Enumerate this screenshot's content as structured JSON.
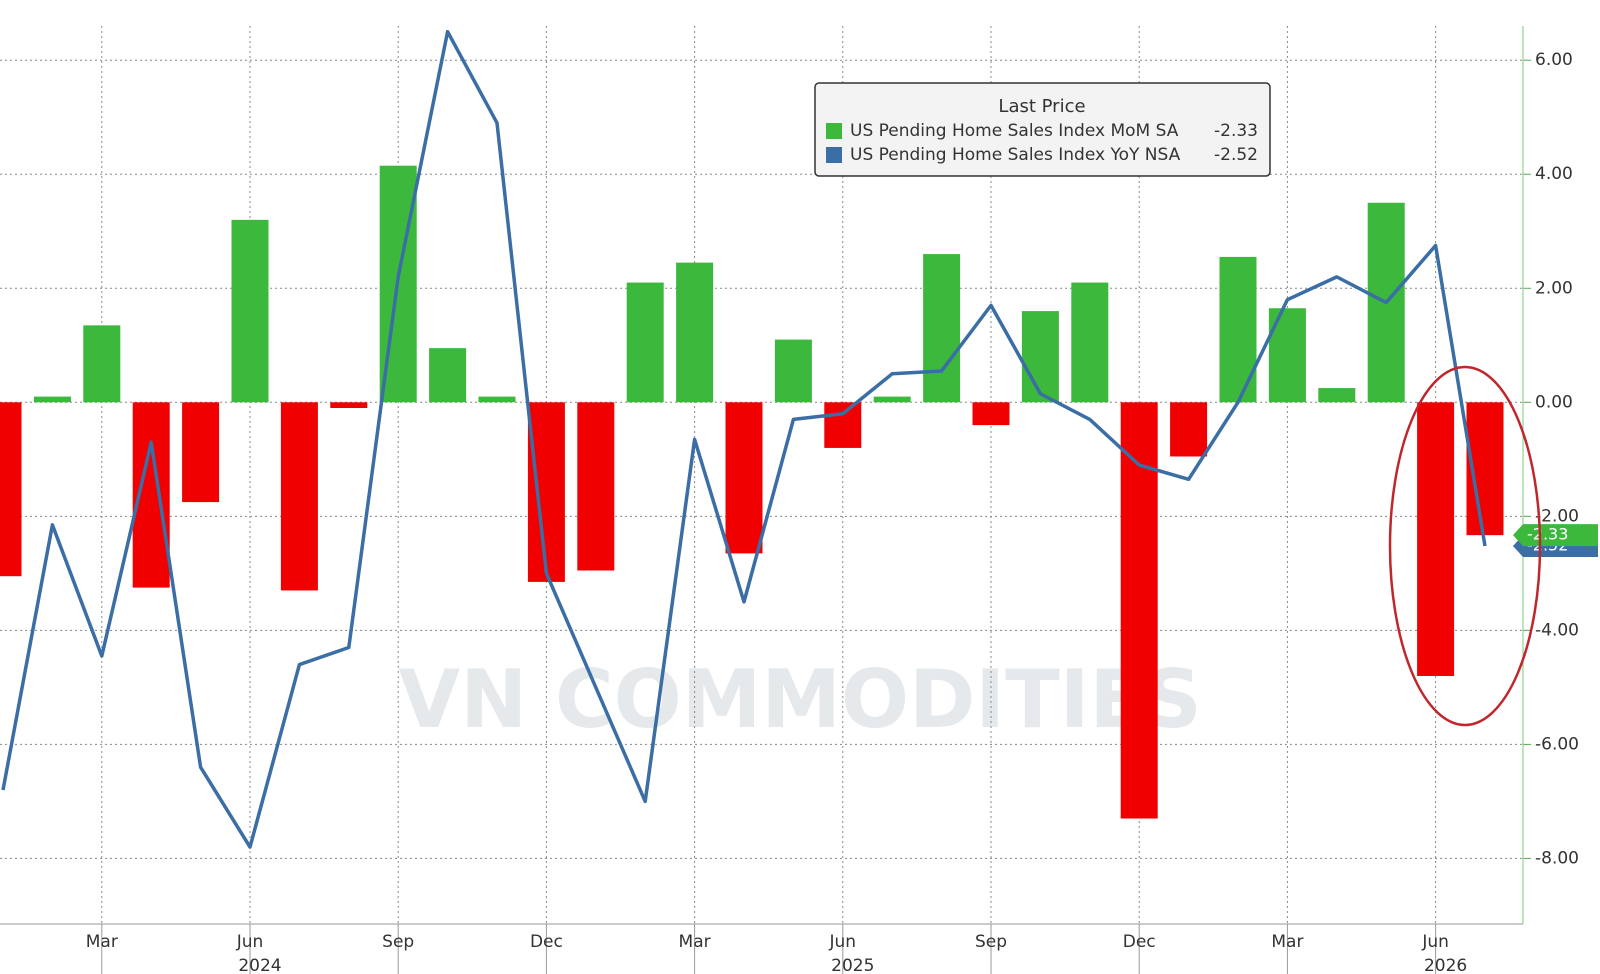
{
  "chart_data": {
    "type": "bar_line",
    "legend_title": "Last Price",
    "watermark": "VN COMMODITIES",
    "categories": [
      null,
      null,
      "Mar",
      null,
      null,
      "Jun",
      null,
      null,
      "Sep",
      null,
      null,
      "Dec",
      null,
      null,
      "Mar",
      null,
      null,
      "Jun",
      null,
      null,
      "Sep",
      null,
      null,
      "Dec",
      null,
      null,
      "Mar",
      null,
      null,
      "Jun",
      null
    ],
    "years": [
      "2024",
      "2025",
      "2026"
    ],
    "series": [
      {
        "name": "US Pending Home Sales Index MoM SA",
        "type": "bar",
        "color": "#3cb93c",
        "negative_color": "#f00000",
        "values": [
          -3.05,
          0.1,
          1.35,
          -3.25,
          -1.75,
          3.2,
          -3.3,
          -0.1,
          4.15,
          0.95,
          0.1,
          -3.15,
          -2.95,
          2.1,
          2.45,
          -2.65,
          1.1,
          -0.8,
          0.1,
          2.6,
          -0.4,
          1.6,
          2.1,
          -7.3,
          -0.95,
          2.55,
          1.65,
          0.25,
          3.5,
          -4.8,
          -2.33
        ]
      },
      {
        "name": "US Pending Home Sales Index YoY NSA",
        "type": "line",
        "color": "#3a6ea5",
        "values": [
          -6.8,
          -2.15,
          -4.45,
          -0.7,
          -6.4,
          -7.8,
          -4.6,
          -4.3,
          2.2,
          6.5,
          4.9,
          -3.0,
          -5.0,
          -7.0,
          -0.65,
          -3.5,
          -0.3,
          -0.2,
          0.5,
          0.55,
          1.7,
          0.15,
          -0.3,
          -1.1,
          -1.35,
          0.0,
          1.8,
          2.2,
          1.75,
          2.75,
          -2.52
        ]
      }
    ],
    "ylim": [
      -9.15,
      6.6
    ],
    "yticks": [
      {
        "value": 6,
        "label": "6.00"
      },
      {
        "value": 4,
        "label": "4.00"
      },
      {
        "value": 2,
        "label": "2.00"
      },
      {
        "value": 0,
        "label": "0.00"
      },
      {
        "value": -2,
        "label": "-2.00"
      },
      {
        "value": -4,
        "label": "-4.00"
      },
      {
        "value": -6,
        "label": "-6.00"
      },
      {
        "value": -8,
        "label": "-8.00"
      }
    ],
    "grid": true
  }
}
